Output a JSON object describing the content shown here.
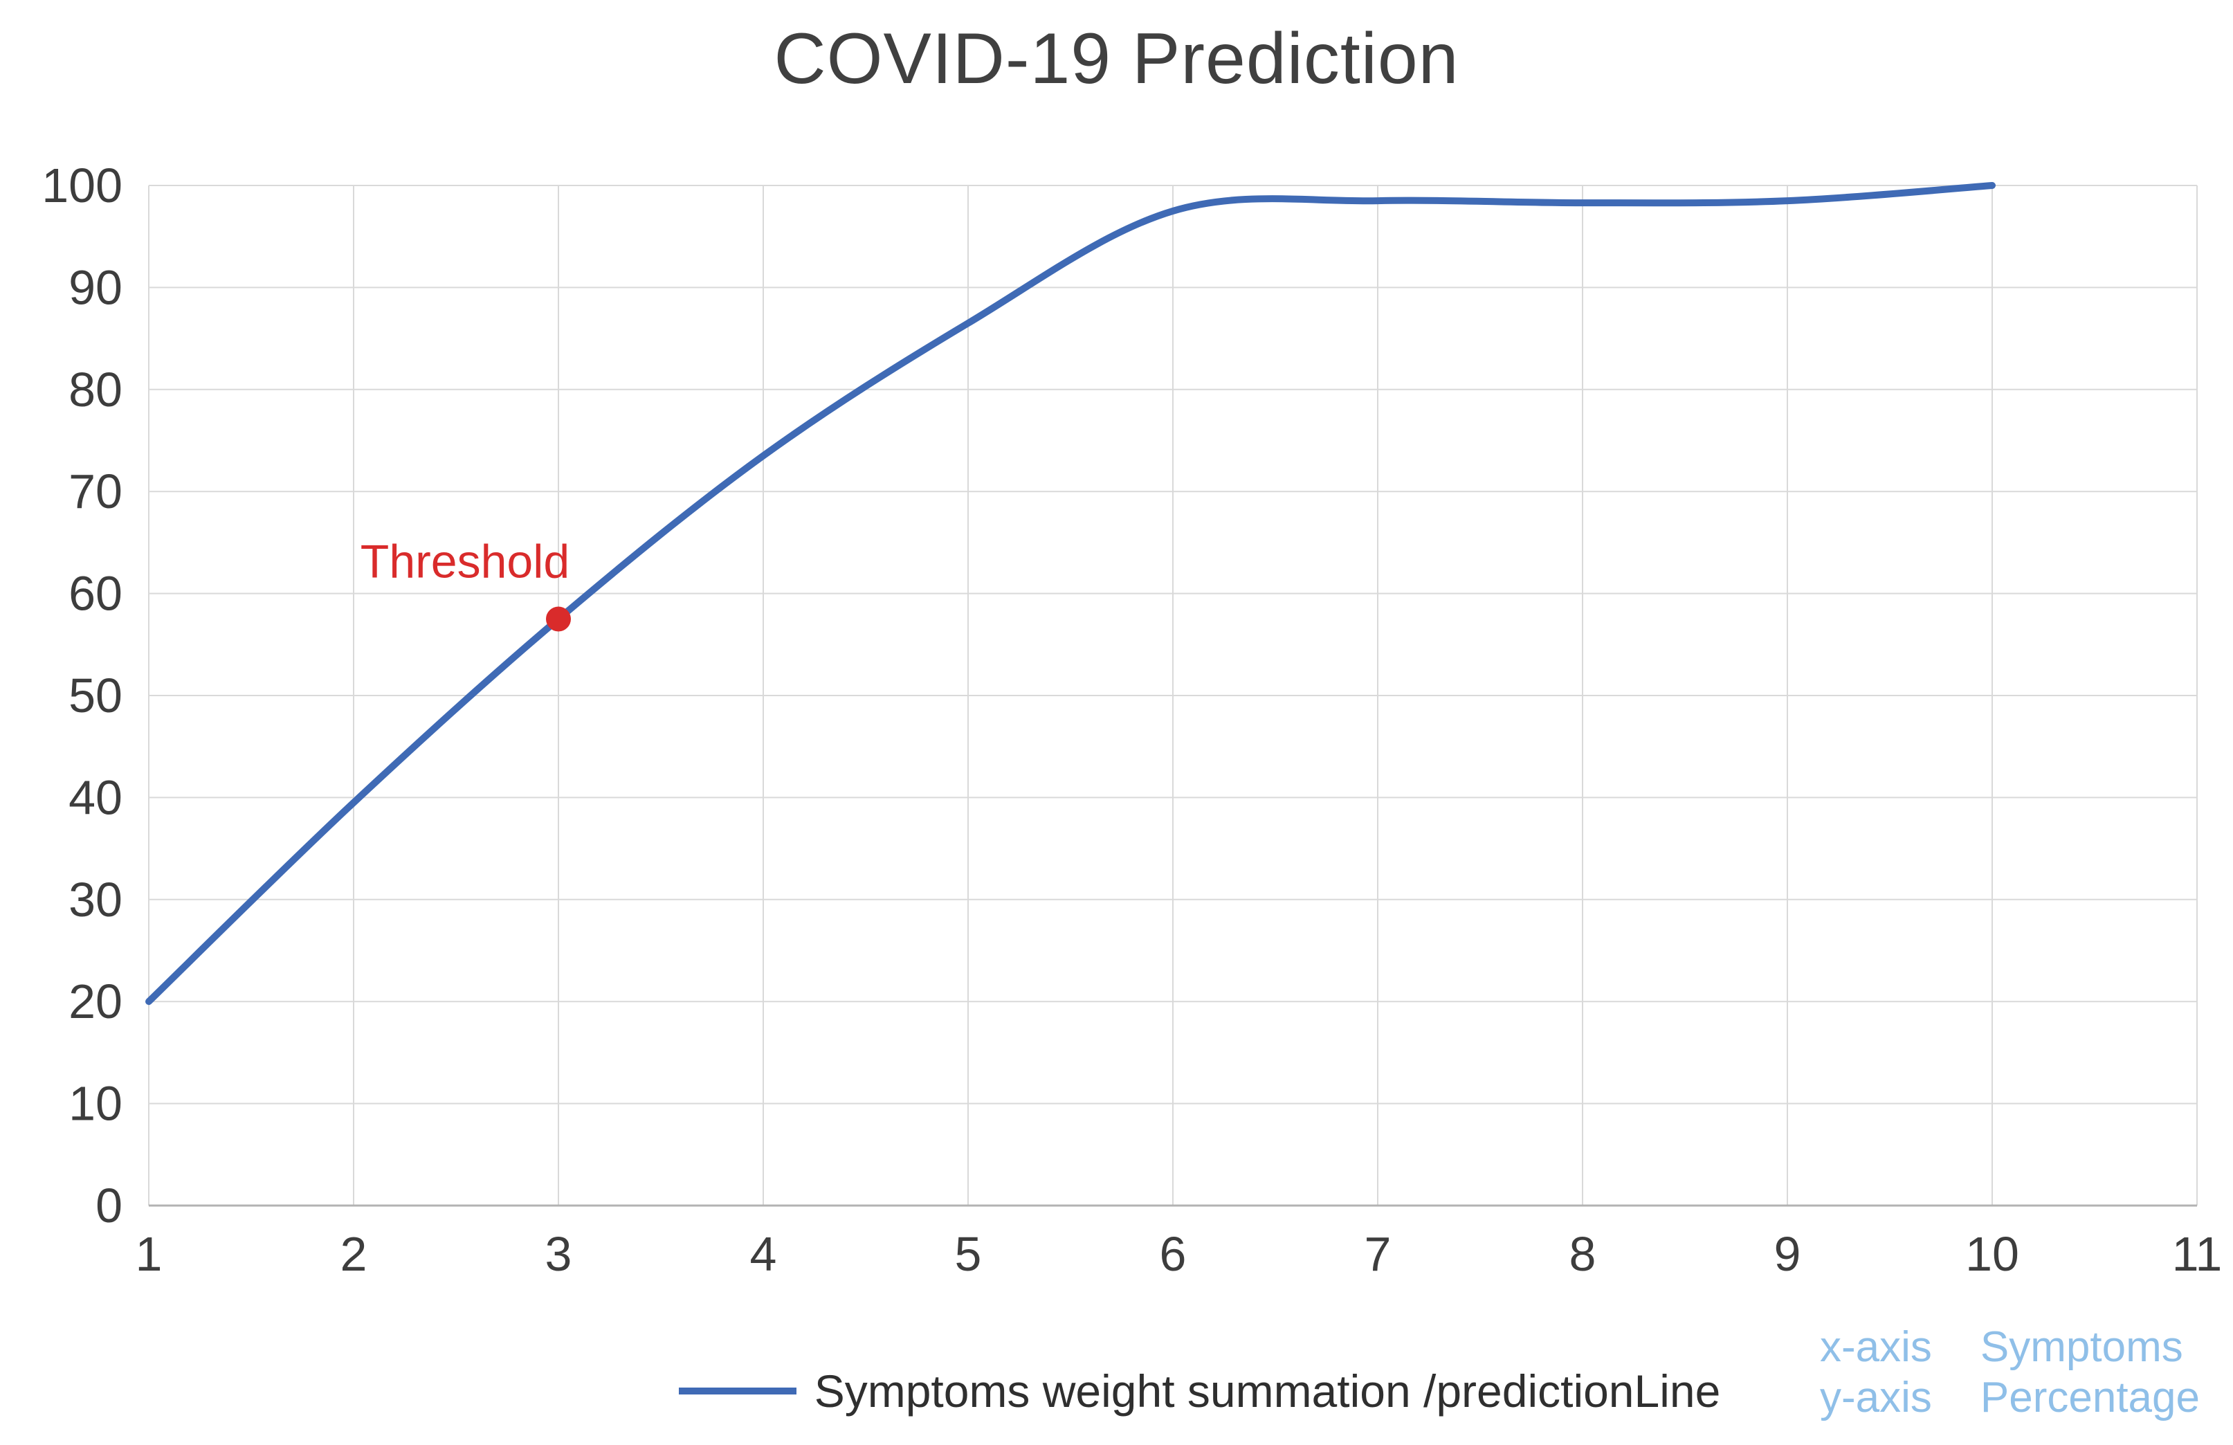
{
  "chart_data": {
    "type": "line",
    "title": "COVID-19 Prediction",
    "x": [
      1,
      2,
      3,
      4,
      5,
      6,
      7,
      8,
      9,
      10
    ],
    "series": [
      {
        "name": "Symptoms weight summation /predictionLine",
        "values": [
          20,
          39.5,
          57.5,
          73.5,
          86.5,
          97.5,
          98.5,
          98.3,
          98.5,
          100
        ],
        "color": "#3f6ab5"
      }
    ],
    "xlim": [
      1,
      11
    ],
    "ylim": [
      0,
      100
    ],
    "x_ticks": [
      1,
      2,
      3,
      4,
      5,
      6,
      7,
      8,
      9,
      10,
      11
    ],
    "y_ticks": [
      0,
      10,
      20,
      30,
      40,
      50,
      60,
      70,
      80,
      90,
      100
    ],
    "grid": true,
    "legend_position": "bottom",
    "colors": {
      "grid": "#d9d9d9",
      "tick": "#3d3d3d",
      "axis": "#b3b3b3"
    },
    "annotations": [
      {
        "label": "Threshold",
        "x": 3,
        "y": 57.5,
        "color": "#d92b2b"
      }
    ]
  },
  "footnote": {
    "color": "#8fbfe8",
    "rows": [
      {
        "label": "x-axis",
        "value": "Symptoms"
      },
      {
        "label": "y-axis",
        "value": "Percentage"
      }
    ]
  }
}
